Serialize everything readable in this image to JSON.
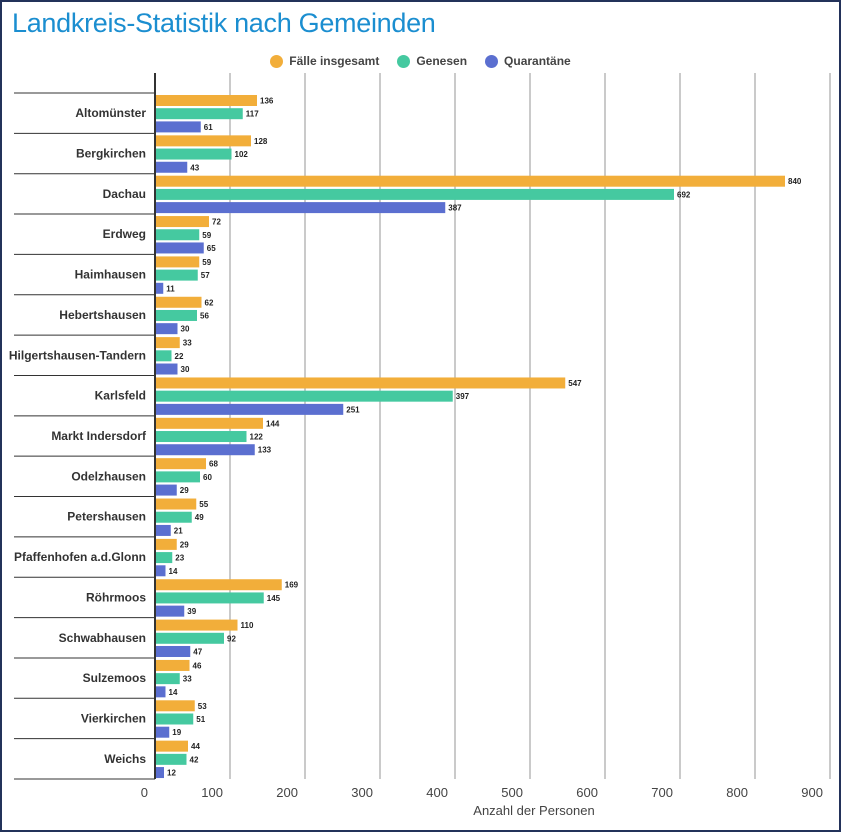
{
  "colors": {
    "Fälle insgesamt": "#f2ae3a",
    "Genesen": "#45c9a0",
    "Quarantäne": "#5b6fd0"
  },
  "chart_data": {
    "type": "bar",
    "orientation": "horizontal",
    "title": "Landkreis-Statistik nach Gemeinden",
    "xlabel": "Anzahl der Personen",
    "ylabel": "",
    "xlim": [
      0,
      900
    ],
    "xticks": [
      "0",
      "100",
      "200",
      "300",
      "400",
      "500",
      "600",
      "700",
      "800",
      "900"
    ],
    "legend_position": "top",
    "grid": true,
    "categories": [
      "Altomünster",
      "Bergkirchen",
      "Dachau",
      "Erdweg",
      "Haimhausen",
      "Hebertshausen",
      "Hilgertshausen-Tandern",
      "Karlsfeld",
      "Markt Indersdorf",
      "Odelzhausen",
      "Petershausen",
      "Pfaffenhofen a.d.Glonn",
      "Röhrmoos",
      "Schwabhausen",
      "Sulzemoos",
      "Vierkirchen",
      "Weichs"
    ],
    "series": [
      {
        "name": "Fälle insgesamt",
        "values": [
          136,
          128,
          840,
          72,
          59,
          62,
          33,
          547,
          144,
          68,
          55,
          29,
          169,
          110,
          46,
          53,
          44
        ]
      },
      {
        "name": "Genesen",
        "values": [
          117,
          102,
          692,
          59,
          57,
          56,
          22,
          397,
          122,
          60,
          49,
          23,
          145,
          92,
          33,
          51,
          42
        ]
      },
      {
        "name": "Quarantäne",
        "values": [
          61,
          43,
          387,
          65,
          11,
          30,
          30,
          251,
          133,
          29,
          21,
          14,
          39,
          47,
          14,
          19,
          12
        ]
      }
    ]
  }
}
